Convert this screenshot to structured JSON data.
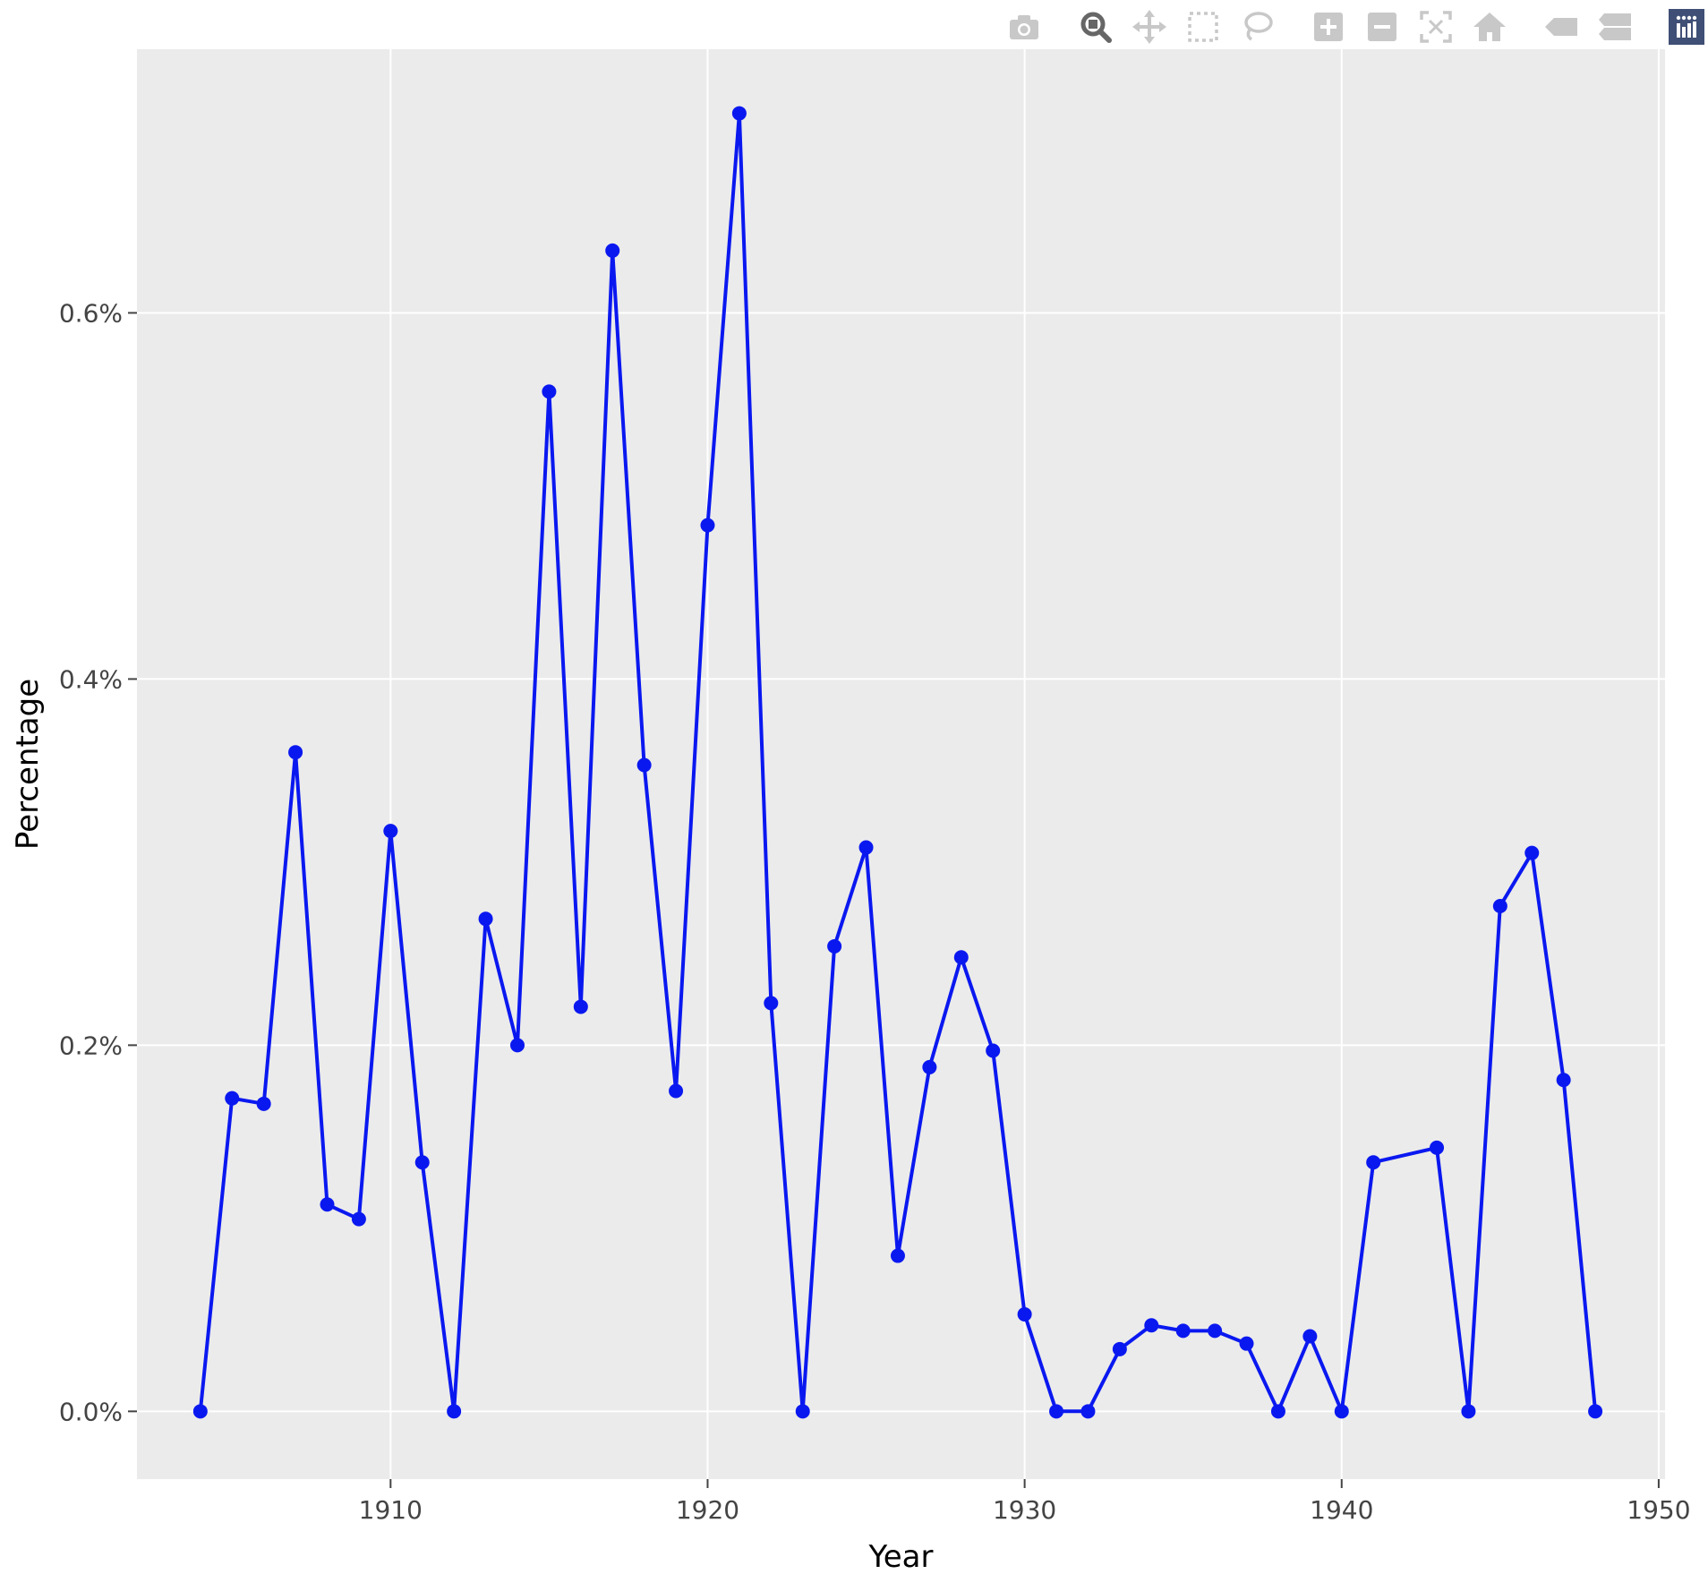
{
  "modebar": {
    "buttons": [
      {
        "name": "camera-icon",
        "group": 1
      },
      {
        "name": "zoom-icon",
        "group": 2,
        "active": true
      },
      {
        "name": "pan-icon",
        "group": 2
      },
      {
        "name": "box-select-icon",
        "group": 2
      },
      {
        "name": "lasso-select-icon",
        "group": 2
      },
      {
        "name": "zoom-in-icon",
        "group": 3
      },
      {
        "name": "zoom-out-icon",
        "group": 3
      },
      {
        "name": "autoscale-icon",
        "group": 3
      },
      {
        "name": "reset-axes-icon",
        "group": 3
      },
      {
        "name": "hover-closest-icon",
        "group": 4
      },
      {
        "name": "hover-compare-icon",
        "group": 4
      },
      {
        "name": "plotly-logo-icon",
        "group": 5
      }
    ],
    "icon_color": "#c8c8c8",
    "active_color": "#666666",
    "logo_color": "#3f4f75"
  },
  "chart_data": {
    "type": "line",
    "mode": "lines+markers",
    "xlabel": "Year",
    "ylabel": "Percentage",
    "xlim": [
      1902,
      1950.2
    ],
    "ylim": [
      -0.037,
      0.744
    ],
    "xticks": [
      1910,
      1920,
      1930,
      1940,
      1950
    ],
    "xtick_labels": [
      "1910",
      "1920",
      "1930",
      "1940",
      "1950"
    ],
    "yticks": [
      0,
      0.2,
      0.4,
      0.6
    ],
    "ytick_labels": [
      "0.0%",
      "0.2%",
      "0.4%",
      "0.6%"
    ],
    "grid": true,
    "plot_bgcolor": "#ebebeb",
    "line_color": "#0a18f0",
    "series": [
      {
        "x": [
          1904,
          1905,
          1906,
          1907,
          1908,
          1909,
          1910,
          1911,
          1912,
          1913,
          1914,
          1915,
          1916,
          1917,
          1918,
          1919,
          1920,
          1921,
          1922,
          1923,
          1924,
          1925,
          1926,
          1927,
          1928,
          1929,
          1930,
          1931,
          1932,
          1933,
          1934,
          1935,
          1936,
          1937,
          1938,
          1939,
          1940,
          1941,
          1943,
          1944,
          1945,
          1946,
          1947,
          1948
        ],
        "y": [
          0.0,
          0.171,
          0.168,
          0.36,
          0.113,
          0.105,
          0.317,
          0.136,
          0.0,
          0.269,
          0.2,
          0.557,
          0.221,
          0.634,
          0.353,
          0.175,
          0.484,
          0.709,
          0.223,
          0.0,
          0.254,
          0.308,
          0.085,
          0.188,
          0.248,
          0.197,
          0.053,
          0.0,
          0.0,
          0.034,
          0.047,
          0.044,
          0.044,
          0.037,
          0.0,
          0.041,
          0.0,
          0.136,
          0.144,
          0.0,
          0.276,
          0.305,
          0.181,
          0.0
        ]
      }
    ]
  }
}
